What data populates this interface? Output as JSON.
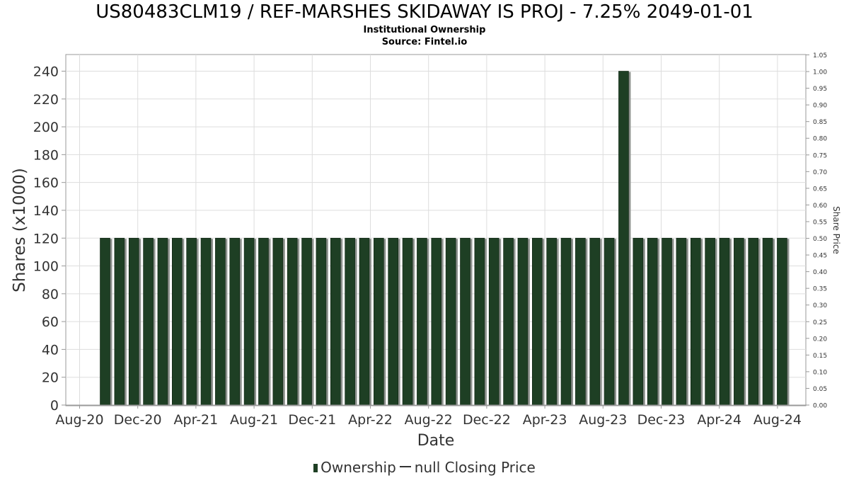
{
  "chart_data": {
    "type": "bar",
    "title": "US80483CLM19 / REF-MARSHES SKIDAWAY IS PROJ - 7.25% 2049-01-01",
    "subtitle_lines": [
      "Institutional Ownership",
      "Source: Fintel.io"
    ],
    "xlabel": "Date",
    "ylabel": "Shares (x1000)",
    "y2label": "Share Price",
    "ylim": [
      0,
      250
    ],
    "yticks": [
      0,
      20,
      40,
      60,
      80,
      100,
      120,
      140,
      160,
      180,
      200,
      220,
      240
    ],
    "y2lim": [
      0,
      1.05
    ],
    "y2ticks": [
      "0.00",
      "0.05",
      "0.10",
      "0.15",
      "0.20",
      "0.25",
      "0.30",
      "0.35",
      "0.40",
      "0.45",
      "0.50",
      "0.55",
      "0.60",
      "0.65",
      "0.70",
      "0.75",
      "0.80",
      "0.85",
      "0.90",
      "0.95",
      "1.00",
      "1.05"
    ],
    "xticks": [
      "Aug-20",
      "Dec-20",
      "Apr-21",
      "Aug-21",
      "Dec-21",
      "Apr-22",
      "Aug-22",
      "Dec-22",
      "Apr-23",
      "Aug-23",
      "Dec-23",
      "Apr-24",
      "Aug-24"
    ],
    "grid": true,
    "legend_placement": "bottom",
    "series": [
      {
        "name": "Ownership",
        "color": "#1e3f24",
        "values": [
          120,
          120,
          120,
          120,
          120,
          120,
          120,
          120,
          120,
          120,
          120,
          120,
          120,
          120,
          120,
          120,
          120,
          120,
          120,
          120,
          120,
          120,
          120,
          120,
          120,
          120,
          120,
          120,
          120,
          120,
          120,
          120,
          120,
          120,
          120,
          120,
          240,
          120,
          120,
          120,
          120,
          120,
          120,
          120,
          120,
          120,
          120,
          120
        ]
      }
    ]
  },
  "legend": {
    "ownership_label": "Ownership",
    "price_label": "null Closing Price"
  }
}
